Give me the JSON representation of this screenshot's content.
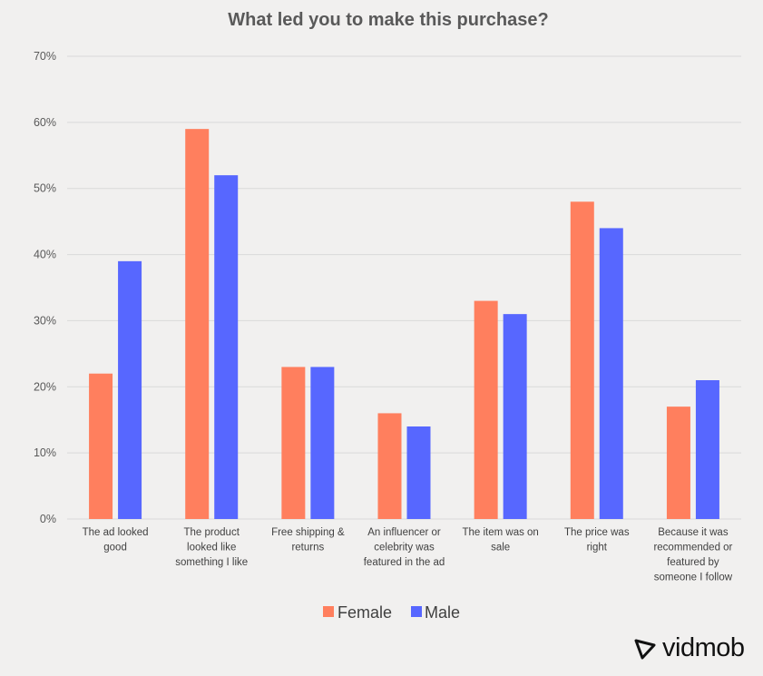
{
  "chart_data": {
    "type": "bar",
    "title": "What led you to make this purchase?",
    "categories": [
      [
        "The ad looked",
        "good"
      ],
      [
        "The product",
        "looked like",
        "something I like"
      ],
      [
        "Free shipping &",
        "returns"
      ],
      [
        "An influencer or",
        "celebrity was",
        "featured in the ad"
      ],
      [
        "The item was on",
        "sale"
      ],
      [
        "The price was",
        "right"
      ],
      [
        "Because it was",
        "recommended or",
        "featured by",
        "someone I follow"
      ]
    ],
    "series": [
      {
        "name": "Female",
        "color": "#ff7f5e",
        "values": [
          22,
          59,
          23,
          16,
          33,
          48,
          17
        ]
      },
      {
        "name": "Male",
        "color": "#5767ff",
        "values": [
          39,
          52,
          23,
          14,
          31,
          44,
          21
        ]
      }
    ],
    "y_ticks": [
      "0%",
      "10%",
      "20%",
      "30%",
      "40%",
      "50%",
      "60%",
      "70%"
    ],
    "ylim": [
      0,
      70
    ],
    "grid": true,
    "legend_position": "bottom-center"
  },
  "brand": {
    "text": "vidmob",
    "icon": "vidmob-logo-icon"
  }
}
